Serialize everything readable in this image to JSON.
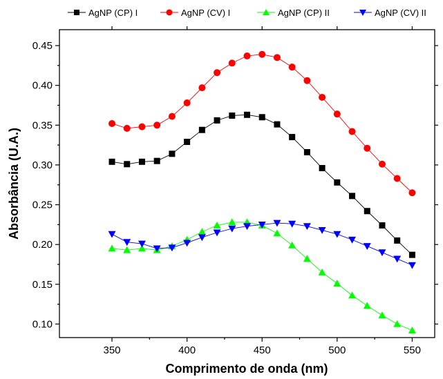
{
  "chart_data": {
    "type": "line",
    "xlabel": "Comprimento de onda (nm)",
    "ylabel": "Absorbância (U.A.)",
    "xlim": [
      315,
      565
    ],
    "ylim": [
      0.083,
      0.47
    ],
    "xticks": [
      350,
      400,
      450,
      500,
      550
    ],
    "yticks": [
      0.1,
      0.15,
      0.2,
      0.25,
      0.3,
      0.35,
      0.4,
      0.45
    ],
    "x": [
      350,
      360,
      370,
      380,
      390,
      400,
      410,
      420,
      430,
      440,
      450,
      460,
      470,
      480,
      490,
      500,
      510,
      520,
      530,
      540,
      550
    ],
    "legend_position": "top",
    "grid": false,
    "series": [
      {
        "name": "AgNP (CP) I",
        "color": "#000000",
        "marker": "square",
        "values": [
          0.304,
          0.301,
          0.304,
          0.305,
          0.314,
          0.329,
          0.344,
          0.356,
          0.362,
          0.363,
          0.36,
          0.351,
          0.335,
          0.316,
          0.296,
          0.278,
          0.261,
          0.242,
          0.224,
          0.205,
          0.187
        ]
      },
      {
        "name": "AgNP (CV) I",
        "color": "#ff0000",
        "marker": "circle",
        "values": [
          0.352,
          0.346,
          0.348,
          0.35,
          0.361,
          0.378,
          0.397,
          0.416,
          0.428,
          0.437,
          0.439,
          0.435,
          0.423,
          0.406,
          0.385,
          0.364,
          0.342,
          0.321,
          0.301,
          0.283,
          0.265
        ]
      },
      {
        "name": "AgNP (CP) II",
        "color": "#00ff00",
        "marker": "triangle-up",
        "values": [
          0.195,
          0.193,
          0.195,
          0.193,
          0.198,
          0.206,
          0.216,
          0.224,
          0.228,
          0.228,
          0.224,
          0.214,
          0.199,
          0.182,
          0.165,
          0.151,
          0.136,
          0.123,
          0.111,
          0.1,
          0.092
        ]
      },
      {
        "name": "AgNP (CV) II",
        "color": "#0000ff",
        "marker": "triangle-down",
        "values": [
          0.213,
          0.203,
          0.201,
          0.195,
          0.196,
          0.202,
          0.209,
          0.215,
          0.22,
          0.223,
          0.225,
          0.227,
          0.226,
          0.223,
          0.218,
          0.213,
          0.206,
          0.198,
          0.19,
          0.182,
          0.174
        ]
      }
    ]
  }
}
